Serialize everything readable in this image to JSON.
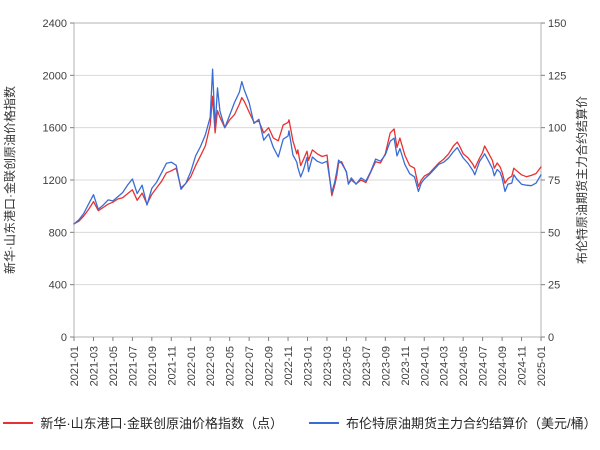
{
  "chart_data": {
    "type": "line",
    "title": "",
    "grid": "horizontal",
    "legend_position": "bottom",
    "left_axis": {
      "label": "新华·山东港口·金联创原油价格指数",
      "ticks": [
        0,
        400,
        800,
        1200,
        1600,
        2000,
        2400
      ],
      "range": [
        0,
        2400
      ]
    },
    "right_axis": {
      "label": "布伦特原油期货主力合约结算价",
      "ticks": [
        0,
        25,
        50,
        75,
        100,
        125,
        150
      ],
      "range": [
        0,
        150
      ]
    },
    "x_axis": {
      "tick_labels": [
        "2021-01",
        "2021-03",
        "2021-05",
        "2021-07",
        "2021-09",
        "2021-11",
        "2022-01",
        "2022-03",
        "2022-05",
        "2022-07",
        "2022-09",
        "2022-11",
        "2023-01",
        "2023-03",
        "2023-05",
        "2023-07",
        "2023-09",
        "2023-11",
        "2024-01",
        "2024-03",
        "2024-05",
        "2024-07",
        "2024-09",
        "2024-11",
        "2025-01"
      ],
      "range_months": [
        0,
        48
      ]
    },
    "x": [
      0,
      0.5,
      1,
      1.5,
      2,
      2.5,
      3,
      3.5,
      4,
      4.5,
      5,
      5.5,
      6,
      6.5,
      7,
      7.5,
      8,
      8.5,
      9,
      9.5,
      10,
      10.5,
      11,
      11.5,
      12,
      12.5,
      13,
      13.5,
      14,
      14.25,
      14.5,
      14.75,
      15,
      15.5,
      16,
      16.5,
      17,
      17.25,
      17.5,
      18,
      18.5,
      19,
      19.5,
      20,
      20.5,
      21,
      21.5,
      22,
      22.1,
      22.5,
      22.9,
      23,
      23.3,
      23.6,
      23.95,
      24.1,
      24.5,
      25,
      25.5,
      26,
      26.5,
      26.8,
      27,
      27.2,
      27.5,
      28,
      28.2,
      28.5,
      29,
      29.5,
      30,
      30.5,
      31,
      31.5,
      32,
      32.5,
      32.9,
      33.2,
      33.5,
      34,
      34.5,
      35,
      35.4,
      35.7,
      36,
      36.5,
      37,
      37.5,
      38,
      38.5,
      39,
      39.4,
      39.7,
      40,
      40.5,
      41,
      41.2,
      41.7,
      42,
      42.2,
      42.5,
      43,
      43.2,
      43.5,
      43.8,
      44,
      44.3,
      44.6,
      45,
      45.2,
      45.5,
      46,
      46.5,
      47,
      47.5,
      48
    ],
    "series": [
      {
        "name": "新华·山东港口·金联创原油价格指数（点）",
        "axis": "left",
        "unit": "点",
        "color": "#e83231",
        "values": [
          865,
          885,
          925,
          975,
          1035,
          965,
          990,
          1015,
          1030,
          1055,
          1065,
          1095,
          1125,
          1045,
          1100,
          1015,
          1090,
          1140,
          1190,
          1255,
          1270,
          1290,
          1140,
          1175,
          1225,
          1310,
          1385,
          1460,
          1620,
          1840,
          1560,
          1730,
          1680,
          1600,
          1660,
          1700,
          1780,
          1830,
          1800,
          1720,
          1640,
          1650,
          1560,
          1600,
          1520,
          1500,
          1620,
          1640,
          1660,
          1500,
          1400,
          1430,
          1310,
          1360,
          1420,
          1350,
          1430,
          1400,
          1380,
          1390,
          1080,
          1160,
          1230,
          1330,
          1340,
          1260,
          1170,
          1200,
          1170,
          1200,
          1180,
          1260,
          1340,
          1330,
          1400,
          1560,
          1590,
          1450,
          1520,
          1390,
          1310,
          1290,
          1150,
          1200,
          1230,
          1250,
          1290,
          1330,
          1360,
          1400,
          1460,
          1490,
          1450,
          1400,
          1370,
          1320,
          1290,
          1370,
          1410,
          1460,
          1420,
          1350,
          1290,
          1330,
          1300,
          1260,
          1175,
          1210,
          1230,
          1290,
          1270,
          1240,
          1225,
          1235,
          1250,
          1300
        ]
      },
      {
        "name": "布伦特原油期货主力合约结算价（美元/桶）",
        "axis": "right",
        "unit": "美元/桶",
        "color": "#3a6dd4",
        "values": [
          54,
          56,
          59,
          63.5,
          68,
          61,
          63,
          65.5,
          65,
          67,
          69,
          72.5,
          75.5,
          68.5,
          72.5,
          63,
          71,
          74,
          78.5,
          83,
          83.5,
          82,
          70.5,
          73.5,
          79,
          86.5,
          91,
          96.5,
          105,
          128,
          100,
          119,
          108,
          100,
          106,
          112,
          117,
          122,
          118,
          112,
          102,
          104,
          94,
          97,
          90.5,
          86,
          94.5,
          96,
          98.5,
          87,
          83.5,
          81,
          76.5,
          80,
          85.8,
          79,
          86,
          84,
          83,
          84,
          69,
          74,
          79,
          84.5,
          83,
          79,
          73,
          76,
          73,
          76,
          74.5,
          79,
          85,
          84,
          87,
          93.5,
          95,
          86.5,
          90,
          82.5,
          78,
          76.5,
          69.5,
          73.5,
          75.5,
          77.5,
          80,
          82.5,
          83.5,
          85.5,
          88.5,
          90.5,
          88,
          85.5,
          83,
          79.5,
          77.5,
          84,
          86,
          87.5,
          85,
          80.5,
          77,
          80,
          78.7,
          76,
          69.5,
          73,
          73.5,
          77.5,
          75.5,
          73,
          72.5,
          72.3,
          73.5,
          77.5
        ]
      }
    ],
    "colors": {
      "grid": "#d9d9d9",
      "plot_border": "#b3b3b3",
      "tick": "#808080",
      "text": "#404040"
    }
  },
  "legend": {
    "items": [
      {
        "label": "新华·山东港口·金联创原油价格指数（点）"
      },
      {
        "label": "布伦特原油期货主力合约结算价（美元/桶）"
      }
    ]
  }
}
